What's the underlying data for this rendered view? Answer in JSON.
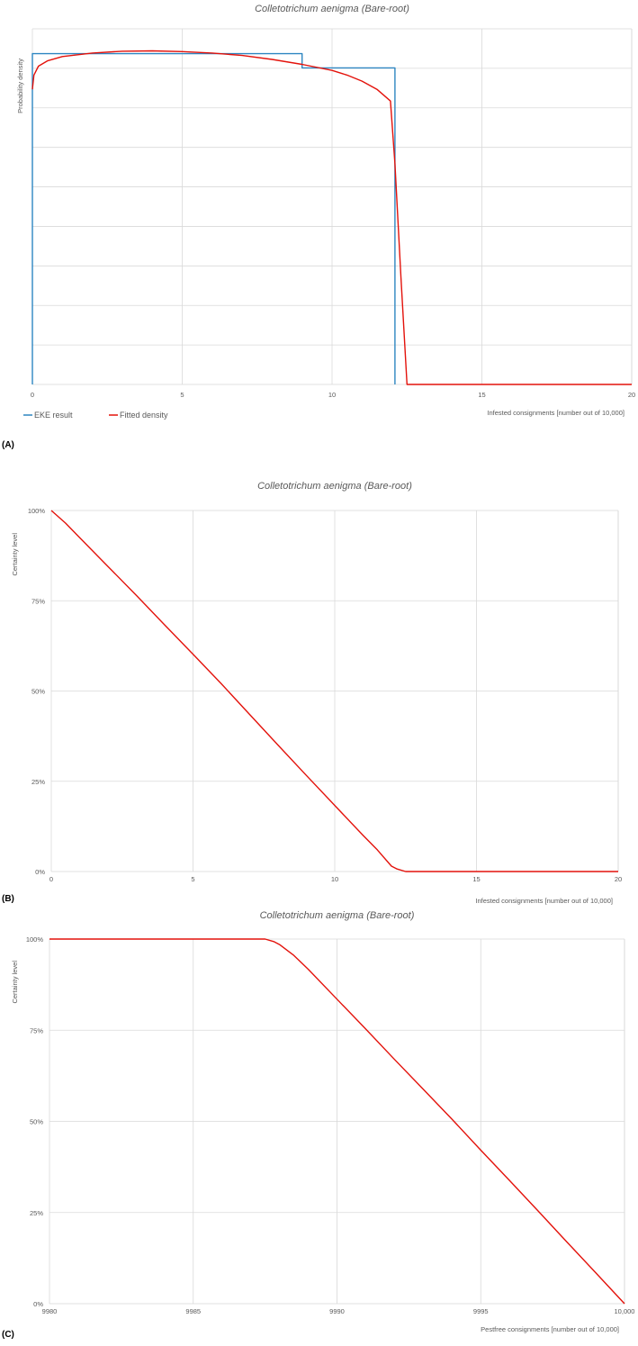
{
  "colors": {
    "eke": "#2e86c1",
    "fitted": "#e3120b",
    "grid": "#d9d9d9"
  },
  "chart_data": [
    {
      "type": "line",
      "panel": "(A)",
      "title": "Colletotrichum aenigma  (Bare-root)",
      "xlabel": "Infested consignments [number out of 10,000]",
      "ylabel": "Probability density",
      "xlim": [
        0,
        20
      ],
      "ylim": [
        0,
        1
      ],
      "x_ticks": [
        0,
        5,
        10,
        15,
        20
      ],
      "x_tick_labels": [
        "0",
        "5",
        "10",
        "15",
        "20"
      ],
      "y_gridlines": 9,
      "grid": true,
      "legend": {
        "placement": "bottom-left",
        "entries": [
          "EKE result",
          "Fitted density"
        ]
      },
      "series": [
        {
          "name": "EKE result",
          "color": "#2e86c1",
          "x": [
            0,
            0,
            9,
            9,
            12.1,
            12.1
          ],
          "y": [
            0,
            0.93,
            0.93,
            0.89,
            0.89,
            0
          ]
        },
        {
          "name": "Fitted density",
          "color": "#e3120b",
          "x": [
            0,
            0.05,
            0.2,
            0.5,
            1,
            2,
            3,
            4,
            5,
            6,
            7,
            8,
            9,
            10,
            10.5,
            11,
            11.5,
            11.95,
            12.1,
            12.3,
            12.5,
            13,
            20
          ],
          "y": [
            0.83,
            0.87,
            0.895,
            0.91,
            0.922,
            0.932,
            0.937,
            0.938,
            0.936,
            0.932,
            0.925,
            0.914,
            0.9,
            0.883,
            0.87,
            0.853,
            0.83,
            0.797,
            0.62,
            0.3,
            0,
            0,
            0
          ]
        }
      ]
    },
    {
      "type": "line",
      "panel": "(B)",
      "title": "Colletotrichum aenigma  (Bare-root)",
      "xlabel": "Infested consignments [number out of 10,000]",
      "ylabel": "Certainty level",
      "xlim": [
        0,
        20
      ],
      "ylim": [
        0,
        100
      ],
      "x_ticks": [
        0,
        5,
        10,
        15,
        20
      ],
      "x_tick_labels": [
        "0",
        "5",
        "10",
        "15",
        "20"
      ],
      "y_ticks": [
        0,
        25,
        50,
        75,
        100
      ],
      "y_tick_labels": [
        "0%",
        "25%",
        "50%",
        "75%",
        "100%"
      ],
      "grid": true,
      "series": [
        {
          "name": "",
          "color": "#e3120b",
          "x": [
            0,
            0.5,
            1,
            2,
            3,
            4,
            5,
            6,
            7,
            8,
            9,
            10,
            11,
            11.5,
            12,
            12.2,
            12.5,
            13,
            20
          ],
          "y": [
            100,
            96.5,
            92.5,
            84.5,
            76.5,
            68.3,
            60.2,
            52,
            43.5,
            35,
            26.6,
            18.3,
            10,
            6,
            1.5,
            0.7,
            0,
            0,
            0
          ]
        }
      ]
    },
    {
      "type": "line",
      "panel": "(C)",
      "title": "Colletotrichum aenigma  (Bare-root)",
      "xlabel": "Pestfree consignments [number out of 10,000]",
      "ylabel": "Certainty level",
      "xlim": [
        9980,
        10000
      ],
      "ylim": [
        0,
        100
      ],
      "x_ticks": [
        9980,
        9985,
        9990,
        9995,
        10000
      ],
      "x_tick_labels": [
        "9980",
        "9985",
        "9990",
        "9995",
        "10,000"
      ],
      "y_ticks": [
        0,
        25,
        50,
        75,
        100
      ],
      "y_tick_labels": [
        "0%",
        "25%",
        "50%",
        "75%",
        "100%"
      ],
      "grid": true,
      "series": [
        {
          "name": "",
          "color": "#e3120b",
          "x": [
            9980,
            9985,
            9987.5,
            9987.8,
            9988,
            9988.5,
            9989,
            9990,
            9991,
            9992,
            9993,
            9994,
            9995,
            9996,
            9997,
            9998,
            9999,
            10000
          ],
          "y": [
            100,
            100,
            100,
            99.3,
            98.5,
            95.5,
            91.7,
            83.5,
            75.3,
            67,
            58.8,
            50.6,
            42.1,
            33.8,
            25.4,
            16.9,
            8.5,
            0
          ]
        }
      ]
    }
  ]
}
